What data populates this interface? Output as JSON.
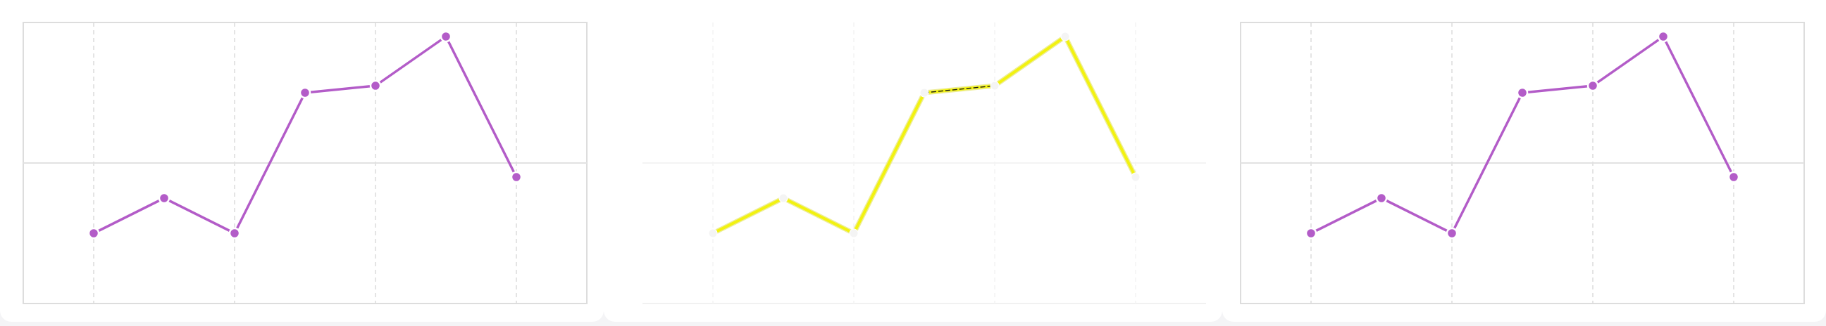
{
  "colors": {
    "series": "#b35cc8",
    "highlight": "#f2f210",
    "highlight_edge": "#1a1a1a",
    "frame": "#dddddd",
    "grid_v": "#dcdcdc",
    "grid_h": "#e2e2e2",
    "point_fill": "#b35cc8",
    "point_fill_ghost": "#f4f4f4",
    "point_stroke": "#ffffff"
  },
  "chart_data": [
    {
      "type": "line",
      "style": "normal",
      "grid": true,
      "x": [
        0,
        1,
        2,
        3,
        4,
        5,
        6
      ],
      "y": [
        0.25,
        0.375,
        0.25,
        0.75,
        0.775,
        0.95,
        0.45
      ],
      "xlim": [
        -1,
        7
      ],
      "ylim": [
        0,
        1
      ],
      "xgrid": [
        0,
        2,
        4,
        6,
        8
      ],
      "ygrid": [
        0.5
      ]
    },
    {
      "type": "line",
      "style": "highlighted",
      "grid": true,
      "x": [
        0,
        1,
        2,
        3,
        4,
        5,
        6
      ],
      "y": [
        0.25,
        0.375,
        0.25,
        0.75,
        0.775,
        0.95,
        0.45
      ],
      "xlim": [
        -1,
        7
      ],
      "ylim": [
        0,
        1
      ],
      "xgrid": [
        0,
        2,
        4,
        6,
        8
      ],
      "ygrid": [
        0.5
      ],
      "emphasis_segment": [
        3,
        4
      ]
    },
    {
      "type": "line",
      "style": "normal",
      "grid": true,
      "x": [
        0,
        1,
        2,
        3,
        4,
        5,
        6
      ],
      "y": [
        0.25,
        0.375,
        0.25,
        0.75,
        0.775,
        0.95,
        0.45
      ],
      "xlim": [
        -1,
        7
      ],
      "ylim": [
        0,
        1
      ],
      "xgrid": [
        0,
        2,
        4,
        6,
        8
      ],
      "ygrid": [
        0.5
      ]
    }
  ]
}
